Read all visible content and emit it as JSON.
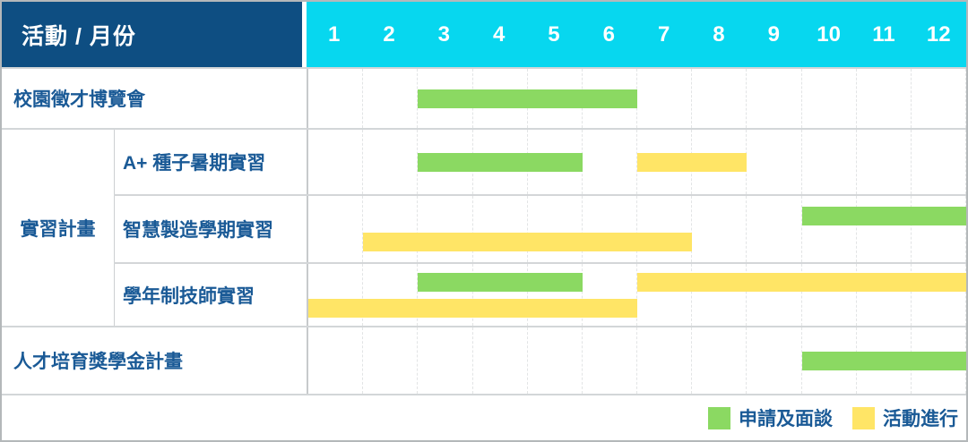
{
  "header": {
    "corner_label": "活動 / 月份",
    "months": [
      "1",
      "2",
      "3",
      "4",
      "5",
      "6",
      "7",
      "8",
      "9",
      "10",
      "11",
      "12"
    ]
  },
  "colors": {
    "header_bg": "#0E4E82",
    "months_bg": "#07D7EF",
    "label_text": "#1A5A96",
    "series": {
      "申請及面談": "#8BD962",
      "活動進行": "#FFE566"
    }
  },
  "chart_data": {
    "type": "table",
    "subtype": "gantt-monthly-timeline",
    "title": "活動 / 月份",
    "x_categories": [
      "1",
      "2",
      "3",
      "4",
      "5",
      "6",
      "7",
      "8",
      "9",
      "10",
      "11",
      "12"
    ],
    "x_range": [
      1,
      12
    ],
    "grid": true,
    "legend_position": "bottom-right",
    "series_names": [
      "申請及面談",
      "活動進行"
    ],
    "group_label": "實習計畫",
    "rows": [
      {
        "group": "",
        "label": "校園徵才博覽會",
        "bands": [
          [
            {
              "series": "申請及面談",
              "start_month": 3,
              "end_month": 6
            }
          ]
        ]
      },
      {
        "group": "實習計畫",
        "label": "A+ 種子暑期實習",
        "bands": [
          [
            {
              "series": "申請及面談",
              "start_month": 3,
              "end_month": 5
            },
            {
              "series": "活動進行",
              "start_month": 7,
              "end_month": 8
            }
          ]
        ]
      },
      {
        "group": "實習計畫",
        "label": "智慧製造學期實習",
        "bands": [
          [
            {
              "series": "申請及面談",
              "start_month": 10,
              "end_month": 12
            }
          ],
          [
            {
              "series": "活動進行",
              "start_month": 2,
              "end_month": 7
            }
          ]
        ]
      },
      {
        "group": "實習計畫",
        "label": "學年制技師實習",
        "bands": [
          [
            {
              "series": "申請及面談",
              "start_month": 3,
              "end_month": 5
            },
            {
              "series": "活動進行",
              "start_month": 7,
              "end_month": 12
            }
          ],
          [
            {
              "series": "活動進行",
              "start_month": 1,
              "end_month": 6
            }
          ]
        ]
      },
      {
        "group": "",
        "label": "人才培育獎學金計畫",
        "bands": [
          [
            {
              "series": "申請及面談",
              "start_month": 10,
              "end_month": 12
            }
          ]
        ]
      }
    ],
    "legend": [
      {
        "series": "申請及面談",
        "label": "申請及面談"
      },
      {
        "series": "活動進行",
        "label": "活動進行"
      }
    ]
  }
}
